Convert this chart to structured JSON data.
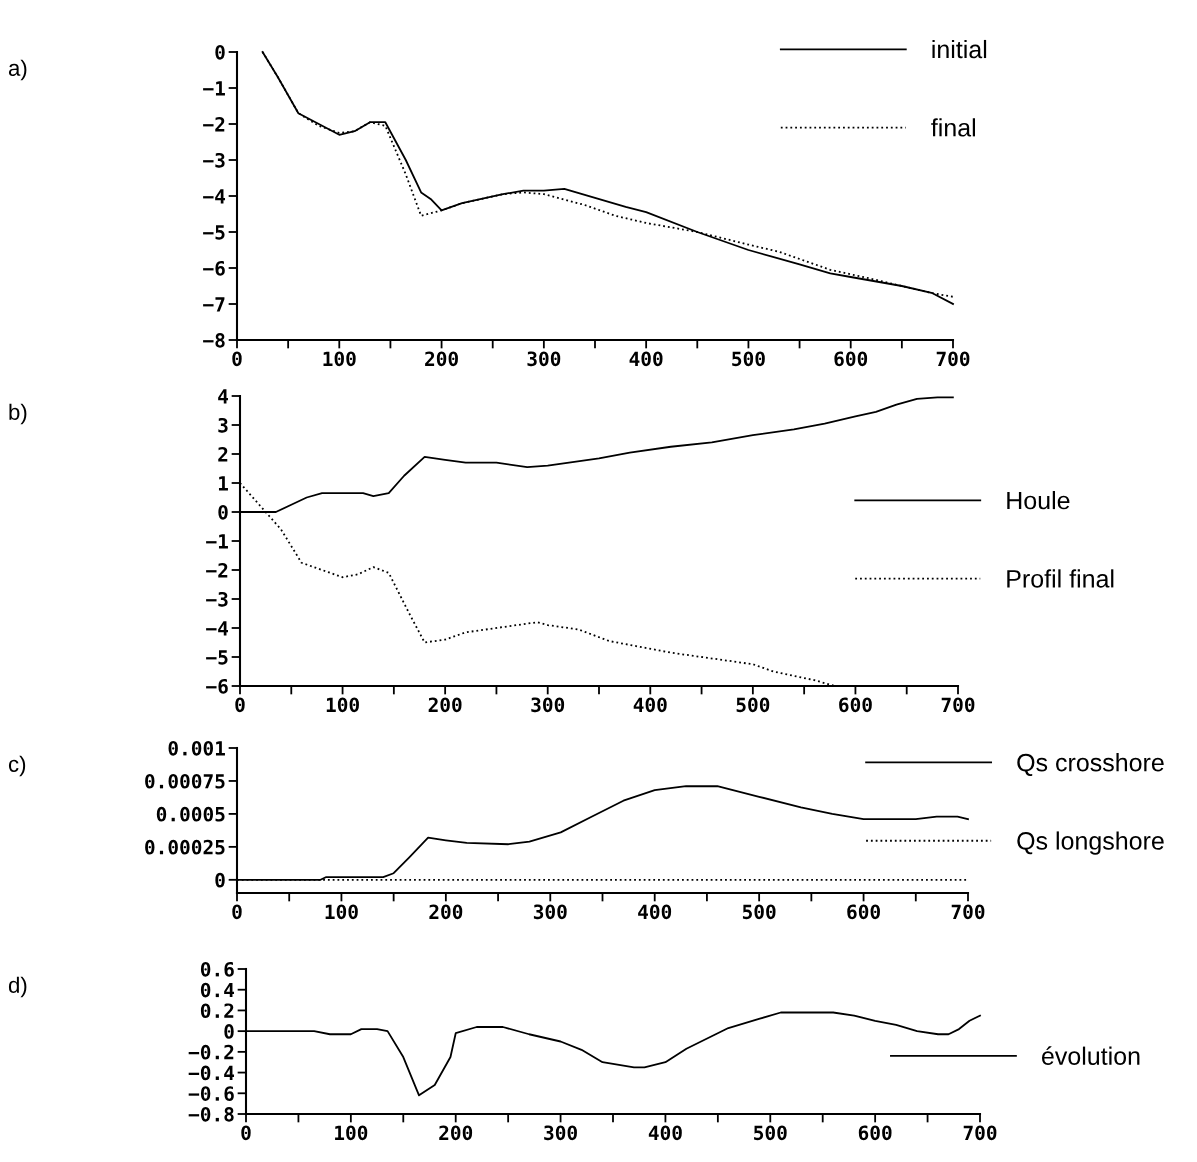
{
  "chart_data": [
    {
      "type": "line",
      "annotations": [
        "a)"
      ],
      "xlim": [
        0,
        700
      ],
      "ylim": [
        -8,
        0
      ],
      "xticks": [
        0,
        {
          "value": 50,
          "label": null
        },
        100,
        {
          "value": 150,
          "label": null
        },
        200,
        {
          "value": 250,
          "label": null
        },
        300,
        {
          "value": 350,
          "label": null
        },
        400,
        {
          "value": 450,
          "label": null
        },
        500,
        {
          "value": 550,
          "label": null
        },
        600,
        {
          "value": 650,
          "label": null
        },
        700
      ],
      "yticks": [
        {
          "value": -8,
          "label": "−8"
        },
        {
          "value": -7,
          "label": "−7"
        },
        {
          "value": -6,
          "label": "−6"
        },
        {
          "value": -5,
          "label": "−5"
        },
        {
          "value": -4,
          "label": "−4"
        },
        {
          "value": -3,
          "label": "−3"
        },
        {
          "value": -2,
          "label": "−2"
        },
        {
          "value": -1,
          "label": "−1"
        },
        0
      ],
      "grid": false,
      "legend": "top right",
      "marker": "none",
      "series": [
        {
          "name": "initial",
          "color": "#000000",
          "line_style": "solid",
          "x": [
            25,
            40,
            60,
            80,
            100,
            115,
            130,
            145,
            165,
            180,
            190,
            200,
            220,
            260,
            280,
            300,
            320,
            350,
            380,
            400,
            450,
            500,
            550,
            580,
            600,
            650,
            680,
            700
          ],
          "values": [
            0,
            -0.7,
            -1.7,
            -2.0,
            -2.3,
            -2.2,
            -1.95,
            -1.95,
            -3.0,
            -3.9,
            -4.1,
            -4.4,
            -4.2,
            -3.95,
            -3.85,
            -3.85,
            -3.8,
            -4.05,
            -4.3,
            -4.45,
            -5.0,
            -5.5,
            -5.9,
            -6.15,
            -6.25,
            -6.5,
            -6.7,
            -7.0
          ]
        },
        {
          "name": "final",
          "color": "#000000",
          "line_style": "dotted",
          "x": [
            25,
            40,
            60,
            80,
            100,
            115,
            130,
            145,
            165,
            180,
            200,
            220,
            260,
            280,
            300,
            340,
            370,
            400,
            450,
            500,
            530,
            580,
            620,
            650,
            680,
            700
          ],
          "values": [
            0,
            -0.7,
            -1.7,
            -2.05,
            -2.25,
            -2.2,
            -1.95,
            -2.05,
            -3.4,
            -4.55,
            -4.4,
            -4.2,
            -3.95,
            -3.9,
            -3.95,
            -4.25,
            -4.55,
            -4.75,
            -5.0,
            -5.35,
            -5.55,
            -6.05,
            -6.3,
            -6.5,
            -6.7,
            -6.8
          ]
        }
      ]
    },
    {
      "type": "line",
      "annotations": [
        "b)"
      ],
      "xlim": [
        0,
        700
      ],
      "ylim": [
        -6,
        4
      ],
      "xticks": [
        0,
        {
          "value": 50,
          "label": null
        },
        100,
        {
          "value": 150,
          "label": null
        },
        200,
        {
          "value": 250,
          "label": null
        },
        300,
        {
          "value": 350,
          "label": null
        },
        400,
        {
          "value": 450,
          "label": null
        },
        500,
        {
          "value": 550,
          "label": null
        },
        600,
        {
          "value": 650,
          "label": null
        },
        700
      ],
      "yticks": [
        {
          "value": -6,
          "label": "−6"
        },
        {
          "value": -5,
          "label": "−5"
        },
        {
          "value": -4,
          "label": "−4"
        },
        {
          "value": -3,
          "label": "−3"
        },
        {
          "value": -2,
          "label": "−2"
        },
        {
          "value": -1,
          "label": "−1"
        },
        0,
        1,
        2,
        3,
        4
      ],
      "grid": false,
      "legend": "right",
      "marker": "none",
      "series": [
        {
          "name": "Houle",
          "color": "#000000",
          "line_style": "solid",
          "x": [
            0,
            35,
            50,
            65,
            80,
            120,
            130,
            145,
            160,
            180,
            200,
            220,
            250,
            280,
            300,
            350,
            380,
            420,
            460,
            500,
            540,
            570,
            600,
            620,
            640,
            660,
            680,
            695
          ],
          "values": [
            0,
            0,
            0.25,
            0.5,
            0.65,
            0.65,
            0.55,
            0.65,
            1.25,
            1.9,
            1.8,
            1.7,
            1.7,
            1.55,
            1.6,
            1.85,
            2.05,
            2.25,
            2.4,
            2.65,
            2.85,
            3.05,
            3.3,
            3.45,
            3.7,
            3.9,
            3.95,
            3.95
          ]
        },
        {
          "name": "Profil final",
          "color": "#000000",
          "line_style": "dotted",
          "x": [
            0,
            20,
            40,
            60,
            80,
            100,
            115,
            130,
            145,
            165,
            180,
            200,
            220,
            260,
            290,
            300,
            330,
            360,
            390,
            420,
            450,
            500,
            520,
            560,
            580
          ],
          "values": [
            1.0,
            0.2,
            -0.6,
            -1.75,
            -2.0,
            -2.25,
            -2.15,
            -1.9,
            -2.1,
            -3.5,
            -4.5,
            -4.4,
            -4.15,
            -3.95,
            -3.8,
            -3.9,
            -4.05,
            -4.45,
            -4.65,
            -4.85,
            -5.0,
            -5.25,
            -5.5,
            -5.8,
            -6.0
          ]
        }
      ]
    },
    {
      "type": "line",
      "annotations": [
        "c)"
      ],
      "xlim": [
        0,
        700
      ],
      "ylim": [
        -0.0001,
        0.001
      ],
      "xticks": [
        0,
        {
          "value": 50,
          "label": null
        },
        100,
        {
          "value": 150,
          "label": null
        },
        200,
        {
          "value": 250,
          "label": null
        },
        300,
        {
          "value": 350,
          "label": null
        },
        400,
        {
          "value": 450,
          "label": null
        },
        500,
        {
          "value": 550,
          "label": null
        },
        600,
        {
          "value": 650,
          "label": null
        },
        700
      ],
      "yticks": [
        0,
        0.00025,
        0.0005,
        0.00075,
        0.001
      ],
      "grid": false,
      "legend": "right",
      "marker": "none",
      "series": [
        {
          "name": "Qs crosshore",
          "color": "#000000",
          "line_style": "solid",
          "x": [
            0,
            80,
            85,
            140,
            150,
            165,
            183,
            200,
            220,
            260,
            280,
            310,
            340,
            370,
            400,
            430,
            460,
            500,
            540,
            570,
            600,
            650,
            670,
            690,
            700
          ],
          "values": [
            0,
            0,
            2e-05,
            2e-05,
            5e-05,
            0.00017,
            0.00032,
            0.0003,
            0.00028,
            0.00027,
            0.00029,
            0.00036,
            0.00048,
            0.0006,
            0.00068,
            0.00071,
            0.00071,
            0.00063,
            0.00055,
            0.0005,
            0.00046,
            0.00046,
            0.00048,
            0.00048,
            0.00046
          ]
        },
        {
          "name": "Qs longshore",
          "color": "#000000",
          "line_style": "dotted",
          "x": [
            0,
            700
          ],
          "values": [
            0,
            0
          ]
        }
      ]
    },
    {
      "type": "line",
      "annotations": [
        "d)"
      ],
      "xlim": [
        0,
        700
      ],
      "ylim": [
        -0.8,
        0.6
      ],
      "xticks": [
        0,
        {
          "value": 50,
          "label": null
        },
        100,
        {
          "value": 150,
          "label": null
        },
        200,
        {
          "value": 250,
          "label": null
        },
        300,
        {
          "value": 350,
          "label": null
        },
        400,
        {
          "value": 450,
          "label": null
        },
        500,
        {
          "value": 550,
          "label": null
        },
        600,
        {
          "value": 650,
          "label": null
        },
        700
      ],
      "yticks": [
        {
          "value": -0.8,
          "label": "−0.8"
        },
        {
          "value": -0.6,
          "label": "−0.6"
        },
        {
          "value": -0.4,
          "label": "−0.4"
        },
        {
          "value": -0.2,
          "label": "−0.2"
        },
        0,
        0.2,
        0.4,
        0.6
      ],
      "grid": false,
      "legend": "right",
      "marker": "none",
      "series": [
        {
          "name": "évolution",
          "color": "#000000",
          "line_style": "solid",
          "x": [
            0,
            65,
            80,
            100,
            110,
            125,
            135,
            150,
            165,
            180,
            195,
            200,
            220,
            245,
            270,
            300,
            320,
            340,
            370,
            380,
            400,
            420,
            460,
            490,
            510,
            560,
            580,
            600,
            620,
            640,
            660,
            670,
            680,
            690,
            700
          ],
          "values": [
            0,
            0,
            -0.03,
            -0.03,
            0.02,
            0.02,
            0,
            -0.25,
            -0.62,
            -0.52,
            -0.25,
            -0.02,
            0.04,
            0.04,
            -0.03,
            -0.1,
            -0.18,
            -0.3,
            -0.35,
            -0.35,
            -0.3,
            -0.17,
            0.03,
            0.12,
            0.18,
            0.18,
            0.15,
            0.1,
            0.06,
            0,
            -0.03,
            -0.03,
            0.02,
            0.1,
            0.15
          ]
        }
      ]
    }
  ]
}
